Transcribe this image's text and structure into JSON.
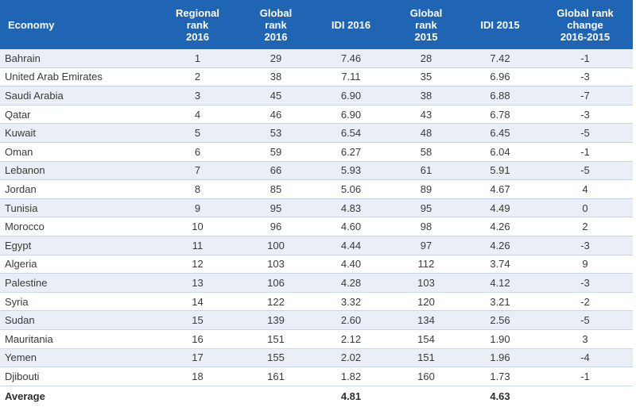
{
  "table": {
    "headers": [
      {
        "line1": "Economy",
        "line2": "",
        "line3": ""
      },
      {
        "line1": "Regional",
        "line2": "rank",
        "line3": "2016"
      },
      {
        "line1": "Global",
        "line2": "rank",
        "line3": "2016"
      },
      {
        "line1": "IDI 2016",
        "line2": "",
        "line3": ""
      },
      {
        "line1": "Global",
        "line2": "rank",
        "line3": "2015"
      },
      {
        "line1": "IDI 2015",
        "line2": "",
        "line3": ""
      },
      {
        "line1": "Global rank",
        "line2": "change",
        "line3": "2016-2015"
      }
    ],
    "rows": [
      [
        "Bahrain",
        "1",
        "29",
        "7.46",
        "28",
        "7.42",
        "-1"
      ],
      [
        "United Arab Emirates",
        "2",
        "38",
        "7.11",
        "35",
        "6.96",
        "-3"
      ],
      [
        "Saudi Arabia",
        "3",
        "45",
        "6.90",
        "38",
        "6.88",
        "-7"
      ],
      [
        "Qatar",
        "4",
        "46",
        "6.90",
        "43",
        "6.78",
        "-3"
      ],
      [
        "Kuwait",
        "5",
        "53",
        "6.54",
        "48",
        "6.45",
        "-5"
      ],
      [
        "Oman",
        "6",
        "59",
        "6.27",
        "58",
        "6.04",
        "-1"
      ],
      [
        "Lebanon",
        "7",
        "66",
        "5.93",
        "61",
        "5.91",
        "-5"
      ],
      [
        "Jordan",
        "8",
        "85",
        "5.06",
        "89",
        "4.67",
        "4"
      ],
      [
        "Tunisia",
        "9",
        "95",
        "4.83",
        "95",
        "4.49",
        "0"
      ],
      [
        "Morocco",
        "10",
        "96",
        "4.60",
        "98",
        "4.26",
        "2"
      ],
      [
        "Egypt",
        "11",
        "100",
        "4.44",
        "97",
        "4.26",
        "-3"
      ],
      [
        "Algeria",
        "12",
        "103",
        "4.40",
        "112",
        "3.74",
        "9"
      ],
      [
        "Palestine",
        "13",
        "106",
        "4.28",
        "103",
        "4.12",
        "-3"
      ],
      [
        "Syria",
        "14",
        "122",
        "3.32",
        "120",
        "3.21",
        "-2"
      ],
      [
        "Sudan",
        "15",
        "139",
        "2.60",
        "134",
        "2.56",
        "-5"
      ],
      [
        "Mauritania",
        "16",
        "151",
        "2.12",
        "154",
        "1.90",
        "3"
      ],
      [
        "Yemen",
        "17",
        "155",
        "2.02",
        "151",
        "1.96",
        "-4"
      ],
      [
        "Djibouti",
        "18",
        "161",
        "1.82",
        "160",
        "1.73",
        "-1"
      ]
    ],
    "footer": {
      "label": "Average",
      "idi_2016": "4.81",
      "idi_2015": "4.63"
    }
  },
  "colors": {
    "header_bg": "#1f65b3",
    "stripe_bg": "#e9eef7"
  }
}
